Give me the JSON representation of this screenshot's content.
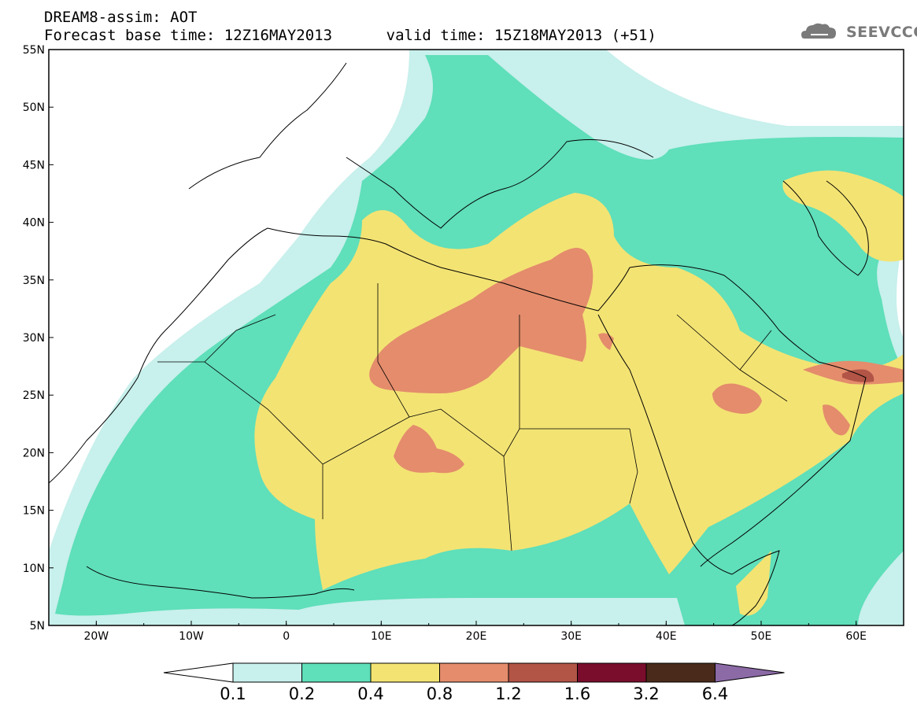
{
  "title_line1": "DREAM8-assim: AOT",
  "title_line2": "Forecast base time: 12Z16MAY2013      valid time: 15Z18MAY2013 (+51)",
  "logo_text": "SEEVCCC",
  "map": {
    "lon_range": [
      -25,
      65
    ],
    "lat_range": [
      5,
      55
    ],
    "lat_labels": [
      "5N",
      "10N",
      "15N",
      "20N",
      "25N",
      "30N",
      "35N",
      "40N",
      "45N",
      "50N",
      "55N"
    ],
    "lon_labels": [
      "20W",
      "10W",
      "0",
      "10E",
      "20E",
      "30E",
      "40E",
      "50E",
      "60E"
    ],
    "colors": {
      "c01": "#c8f0ec",
      "c02": "#5fdfba",
      "c04": "#f3e373",
      "c08": "#e48c6c",
      "c12": "#b25446",
      "c16": "#7a0d2c",
      "c32": "#4a2a1a",
      "c64": "#8c6aa6"
    }
  },
  "colorbar": {
    "labels": [
      "0.1",
      "0.2",
      "0.4",
      "0.8",
      "1.2",
      "1.6",
      "3.2",
      "6.4"
    ],
    "colors": [
      "#c8f0ec",
      "#5fdfba",
      "#f3e373",
      "#e48c6c",
      "#b25446",
      "#7a0d2c",
      "#4a2a1a"
    ],
    "low_arrow_color": "#ffffff",
    "high_arrow_color": "#8c6aa6"
  }
}
